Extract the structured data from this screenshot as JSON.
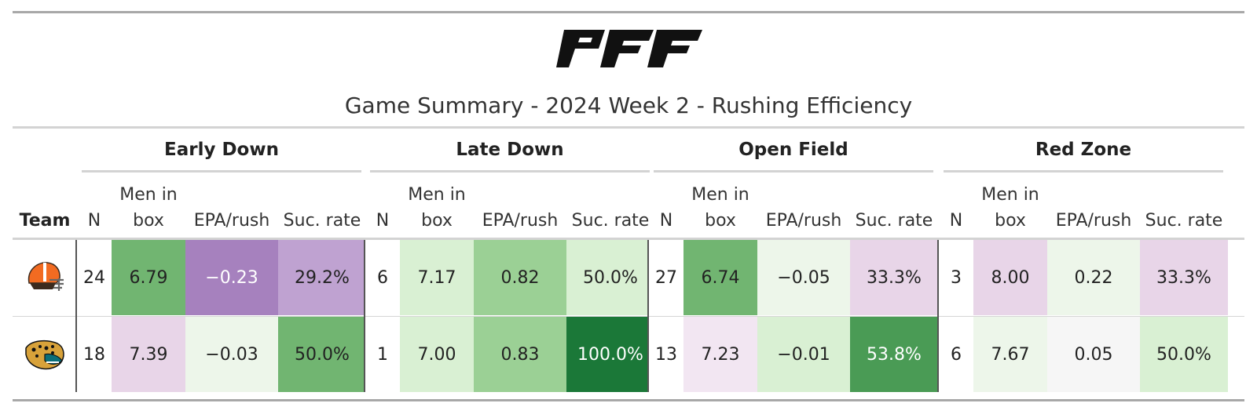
{
  "title": "Game Summary - 2024 Week 2 - Rushing Efficiency",
  "logo": {
    "text": "PFF",
    "icon": "pff-logo-icon"
  },
  "chart_data": {
    "type": "table",
    "title": "Game Summary - 2024 Week 2 - Rushing Efficiency",
    "team_header": "Team",
    "groups": [
      {
        "name": "Early Down",
        "columns": [
          "N",
          "Men in box",
          "EPA/rush",
          "Suc. rate"
        ]
      },
      {
        "name": "Late Down",
        "columns": [
          "N",
          "Men in box",
          "EPA/rush",
          "Suc. rate"
        ]
      },
      {
        "name": "Open Field",
        "columns": [
          "N",
          "Men in box",
          "EPA/rush",
          "Suc. rate"
        ]
      },
      {
        "name": "Red Zone",
        "columns": [
          "N",
          "Men in box",
          "EPA/rush",
          "Suc. rate"
        ]
      }
    ],
    "rows": [
      {
        "team_icon": "browns-helmet-icon",
        "cells": [
          [
            "24",
            "6.79",
            "−0.23",
            "29.2%"
          ],
          [
            "6",
            "7.17",
            "0.82",
            "50.0%"
          ],
          [
            "27",
            "6.74",
            "−0.05",
            "33.3%"
          ],
          [
            "3",
            "8.00",
            "0.22",
            "33.3%"
          ]
        ],
        "colors": [
          [
            "#ffffff",
            "#71b571",
            "#a681be",
            "#bfa2d1"
          ],
          [
            "#ffffff",
            "#d9f0d3",
            "#9bd095",
            "#d9f0d3"
          ],
          [
            "#ffffff",
            "#71b571",
            "#edf6ea",
            "#e8d5e8"
          ],
          [
            "#ffffff",
            "#e8d5e8",
            "#edf6ea",
            "#e8d5e8"
          ]
        ]
      },
      {
        "team_icon": "jaguars-head-icon",
        "cells": [
          [
            "18",
            "7.39",
            "−0.03",
            "50.0%"
          ],
          [
            "1",
            "7.00",
            "0.83",
            "100.0%"
          ],
          [
            "13",
            "7.23",
            "−0.01",
            "53.8%"
          ],
          [
            "6",
            "7.67",
            "0.05",
            "50.0%"
          ]
        ],
        "colors": [
          [
            "#ffffff",
            "#e8d5e8",
            "#edf6ea",
            "#71b571"
          ],
          [
            "#ffffff",
            "#d9f0d3",
            "#9bd095",
            "#1b7838"
          ],
          [
            "#ffffff",
            "#f2e6f2",
            "#d9f0d3",
            "#4a9b55"
          ],
          [
            "#ffffff",
            "#edf6ea",
            "#f6f6f6",
            "#d9f0d3"
          ]
        ]
      }
    ]
  }
}
